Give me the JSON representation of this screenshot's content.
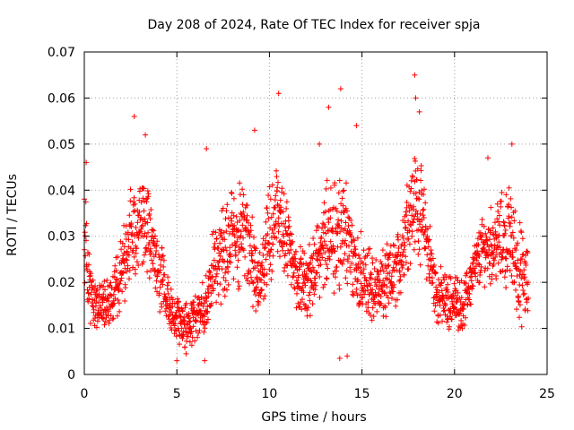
{
  "chart_data": {
    "type": "scatter",
    "title": "Day 208 of 2024, Rate Of TEC Index for receiver spja",
    "xlabel": "GPS time / hours",
    "ylabel": "ROTI / TECUs",
    "xlim": [
      0,
      25
    ],
    "ylim": [
      0,
      0.07
    ],
    "xticks": [
      0,
      5,
      10,
      15,
      20,
      25
    ],
    "yticks": [
      0,
      0.01,
      0.02,
      0.03,
      0.04,
      0.05,
      0.06,
      0.07
    ],
    "ytick_labels": [
      "0",
      "0.01",
      "0.02",
      "0.03",
      "0.04",
      "0.05",
      "0.06",
      "0.07"
    ],
    "grid": true,
    "marker": "+",
    "color": "#ff0000",
    "envelope": [
      [
        0.0,
        0.013,
        0.038
      ],
      [
        0.5,
        0.011,
        0.02
      ],
      [
        1.0,
        0.012,
        0.018
      ],
      [
        1.5,
        0.013,
        0.02
      ],
      [
        2.0,
        0.016,
        0.03
      ],
      [
        2.5,
        0.022,
        0.04
      ],
      [
        3.0,
        0.025,
        0.042
      ],
      [
        3.5,
        0.022,
        0.038
      ],
      [
        4.0,
        0.015,
        0.03
      ],
      [
        4.5,
        0.012,
        0.02
      ],
      [
        5.0,
        0.009,
        0.016
      ],
      [
        5.5,
        0.008,
        0.014
      ],
      [
        6.0,
        0.009,
        0.015
      ],
      [
        6.5,
        0.01,
        0.018
      ],
      [
        7.0,
        0.015,
        0.03
      ],
      [
        7.5,
        0.018,
        0.035
      ],
      [
        8.0,
        0.02,
        0.038
      ],
      [
        8.5,
        0.02,
        0.04
      ],
      [
        9.0,
        0.017,
        0.035
      ],
      [
        9.5,
        0.014,
        0.025
      ],
      [
        10.0,
        0.02,
        0.04
      ],
      [
        10.5,
        0.025,
        0.043
      ],
      [
        11.0,
        0.022,
        0.038
      ],
      [
        11.5,
        0.016,
        0.025
      ],
      [
        12.0,
        0.014,
        0.025
      ],
      [
        12.5,
        0.016,
        0.03
      ],
      [
        13.0,
        0.018,
        0.04
      ],
      [
        13.5,
        0.018,
        0.04
      ],
      [
        14.0,
        0.02,
        0.045
      ],
      [
        14.5,
        0.018,
        0.035
      ],
      [
        15.0,
        0.013,
        0.028
      ],
      [
        15.5,
        0.012,
        0.025
      ],
      [
        16.0,
        0.012,
        0.025
      ],
      [
        16.5,
        0.014,
        0.026
      ],
      [
        17.0,
        0.017,
        0.03
      ],
      [
        17.5,
        0.025,
        0.045
      ],
      [
        18.0,
        0.028,
        0.048
      ],
      [
        18.5,
        0.022,
        0.036
      ],
      [
        19.0,
        0.013,
        0.022
      ],
      [
        19.5,
        0.012,
        0.02
      ],
      [
        20.0,
        0.012,
        0.02
      ],
      [
        20.5,
        0.012,
        0.018
      ],
      [
        21.0,
        0.018,
        0.026
      ],
      [
        21.5,
        0.022,
        0.032
      ],
      [
        23.0,
        0.02,
        0.04
      ],
      [
        23.5,
        0.012,
        0.032
      ],
      [
        24.0,
        0.013,
        0.025
      ]
    ],
    "outliers": [
      [
        17.85,
        0.065
      ],
      [
        10.5,
        0.061
      ],
      [
        13.85,
        0.062
      ],
      [
        13.2,
        0.058
      ],
      [
        17.9,
        0.06
      ],
      [
        2.7,
        0.056
      ],
      [
        14.7,
        0.054
      ],
      [
        18.1,
        0.057
      ],
      [
        9.2,
        0.053
      ],
      [
        3.3,
        0.052
      ],
      [
        23.1,
        0.05
      ],
      [
        12.7,
        0.05
      ],
      [
        21.8,
        0.047
      ],
      [
        6.6,
        0.049
      ],
      [
        0.1,
        0.046
      ],
      [
        13.8,
        0.0035
      ],
      [
        14.2,
        0.004
      ],
      [
        5.0,
        0.003
      ],
      [
        6.5,
        0.003
      ],
      [
        5.5,
        0.0045
      ]
    ]
  }
}
